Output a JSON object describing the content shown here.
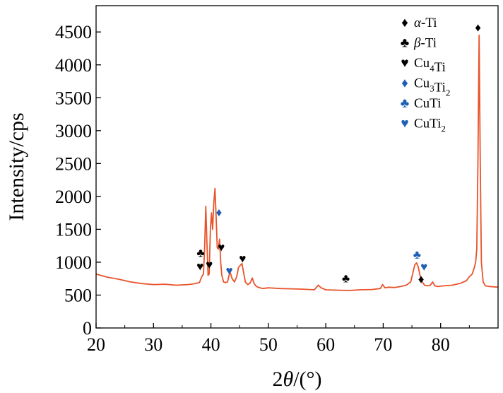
{
  "chart_data": {
    "type": "line",
    "title": "",
    "xlabel": "2θ/(°)",
    "ylabel": "Intensity/cps",
    "xlim": [
      20,
      90
    ],
    "ylim": [
      0,
      4900
    ],
    "xticks": [
      20,
      30,
      40,
      50,
      60,
      70,
      80
    ],
    "yticks": [
      0,
      500,
      1000,
      1500,
      2000,
      2500,
      3000,
      3500,
      4000,
      4500
    ],
    "grid": false,
    "legend_placement": "top-right",
    "series": [
      {
        "color": "#e8542b",
        "x": [
          20,
          22,
          24,
          26,
          28,
          30,
          32,
          34,
          36,
          37,
          38,
          38.4,
          38.7,
          38.9,
          39.1,
          39.3,
          39.5,
          39.7,
          39.9,
          40.1,
          40.3,
          40.5,
          40.7,
          40.9,
          41.1,
          41.3,
          41.5,
          41.7,
          41.9,
          42.2,
          42.5,
          42.9,
          43.3,
          43.7,
          44.1,
          44.5,
          44.8,
          45.1,
          45.4,
          45.7,
          46.0,
          46.4,
          46.8,
          47.2,
          47.5,
          47.8,
          48.2,
          49,
          50,
          52,
          54,
          56,
          58,
          58.7,
          59.2,
          60,
          62,
          64,
          66,
          68,
          69.5,
          69.9,
          70.3,
          71,
          72,
          73,
          74,
          74.8,
          75.2,
          75.5,
          75.8,
          76.1,
          76.4,
          76.8,
          77.2,
          77.7,
          78.2,
          78.6,
          79.0,
          79.5,
          80.5,
          82,
          83.5,
          84.5,
          85.0,
          85.5,
          85.8,
          86.1,
          86.3,
          86.5,
          86.7,
          86.9,
          87.1,
          87.4,
          87.8,
          88.5,
          89.3,
          90
        ],
        "y": [
          820,
          770,
          740,
          700,
          675,
          660,
          665,
          650,
          660,
          670,
          690,
          780,
          820,
          1200,
          1850,
          1300,
          800,
          820,
          1500,
          1750,
          1500,
          1900,
          2120,
          1700,
          1220,
          1200,
          1350,
          1000,
          800,
          700,
          690,
          700,
          860,
          750,
          700,
          780,
          920,
          950,
          980,
          840,
          700,
          660,
          680,
          760,
          680,
          640,
          620,
          600,
          610,
          600,
          595,
          590,
          580,
          650,
          610,
          580,
          575,
          570,
          580,
          585,
          600,
          660,
          610,
          620,
          615,
          630,
          650,
          700,
          850,
          960,
          990,
          930,
          800,
          700,
          650,
          640,
          650,
          700,
          640,
          630,
          640,
          650,
          680,
          720,
          780,
          820,
          900,
          1000,
          1200,
          2500,
          4450,
          2500,
          1000,
          700,
          640,
          630,
          625,
          620
        ]
      }
    ],
    "legend": [
      {
        "marker": "♦",
        "label": "α-Ti",
        "color": "#000000"
      },
      {
        "marker": "♣",
        "label": "β-Ti",
        "color": "#000000"
      },
      {
        "marker": "♥",
        "label": "Cu4Ti",
        "color": "#000000"
      },
      {
        "marker": "♦",
        "label": "Cu3Ti2",
        "color": "#1f5fb4"
      },
      {
        "marker": "♣",
        "label": "CuTi",
        "color": "#1f5fb4"
      },
      {
        "marker": "♥",
        "label": "CuTi2",
        "color": "#1f5fb4"
      }
    ],
    "annotations": [
      {
        "symbol": "♦",
        "color": "#000000",
        "x": 86.5,
        "y": 4570
      },
      {
        "symbol": "♣",
        "color": "#000000",
        "x": 38.2,
        "y": 1145
      },
      {
        "symbol": "♥",
        "color": "#000000",
        "x": 38.1,
        "y": 940
      },
      {
        "symbol": "♥",
        "color": "#000000",
        "x": 39.7,
        "y": 965
      },
      {
        "symbol": "♥",
        "color": "#000000",
        "x": 41.8,
        "y": 1230
      },
      {
        "symbol": "♥",
        "color": "#000000",
        "x": 45.5,
        "y": 1060
      },
      {
        "symbol": "♦",
        "color": "#1f5fb4",
        "x": 41.4,
        "y": 1760
      },
      {
        "symbol": "♥",
        "color": "#1f5fb4",
        "x": 43.2,
        "y": 875
      },
      {
        "symbol": "♣",
        "color": "#000000",
        "x": 63.5,
        "y": 755
      },
      {
        "symbol": "♣",
        "color": "#1f5fb4",
        "x": 75.9,
        "y": 1120
      },
      {
        "symbol": "♥",
        "color": "#1f5fb4",
        "x": 77.1,
        "y": 935
      },
      {
        "symbol": "♦",
        "color": "#000000",
        "x": 76.6,
        "y": 745
      }
    ]
  }
}
